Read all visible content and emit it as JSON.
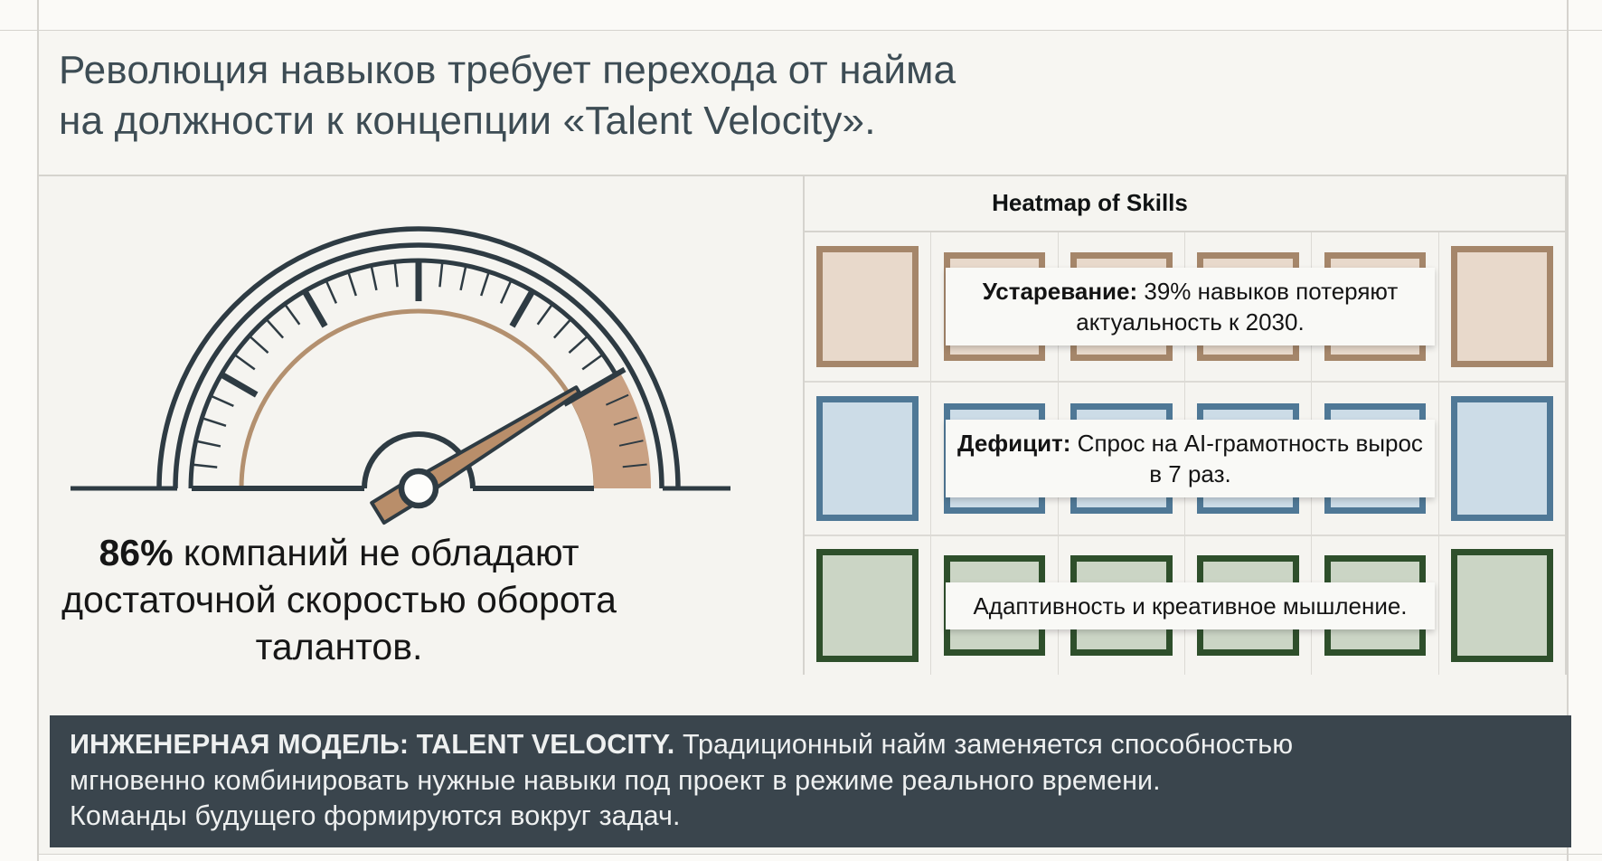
{
  "slide": {
    "title_lines": [
      "Революция навыков требует перехода от найма",
      "на должности к концепции «Talent Velocity»."
    ]
  },
  "gauge": {
    "stat_value": "86%",
    "stat_text": " компаний не обладают достаточной скоростью оборота талантов.",
    "value_percent": 86
  },
  "heatmap": {
    "title": "Heatmap of Skills",
    "columns": 6,
    "rows": [
      {
        "id": "obsolescence",
        "label_bold": "Устаревание:",
        "label_rest": " 39% навыков потеряют актуальность к 2030.",
        "fill": "#e8d9cb",
        "border": "#a5866a"
      },
      {
        "id": "deficit",
        "label_bold": "Дефицит:",
        "label_rest": " Спрос на AI-грамотность вырос в 7 раз.",
        "fill": "#ccdce7",
        "border": "#4f7896"
      },
      {
        "id": "adaptability",
        "label_bold": "",
        "label_rest": "Адаптивность и креативное мышление.",
        "fill": "#cbd5c5",
        "border": "#2e4f2b"
      }
    ]
  },
  "banner": {
    "line1_bold": "ИНЖЕНЕРНАЯ МОДЕЛЬ: TALENT VELOCITY.",
    "line1_rest": " Традиционный найм заменяется способностью",
    "line2": "мгновенно комбинировать нужные навыки под проект в режиме реального времени.",
    "line3": "Команды будущего формируются вокруг задач."
  },
  "colors": {
    "ink": "#2e3b43",
    "page_bg": "#fbfaf7",
    "card_bg": "#f5f4f0",
    "line": "#d5d3ce",
    "tan_arc": "#b3906f",
    "wedge_fill": "#c9a183",
    "needle_fill": "#b98e6a",
    "banner_bg": "#3a454d",
    "banner_text": "#eef0f0",
    "title_color": "#3d4c54",
    "text_color": "#161616",
    "band_bg": "#f9f9f6"
  }
}
